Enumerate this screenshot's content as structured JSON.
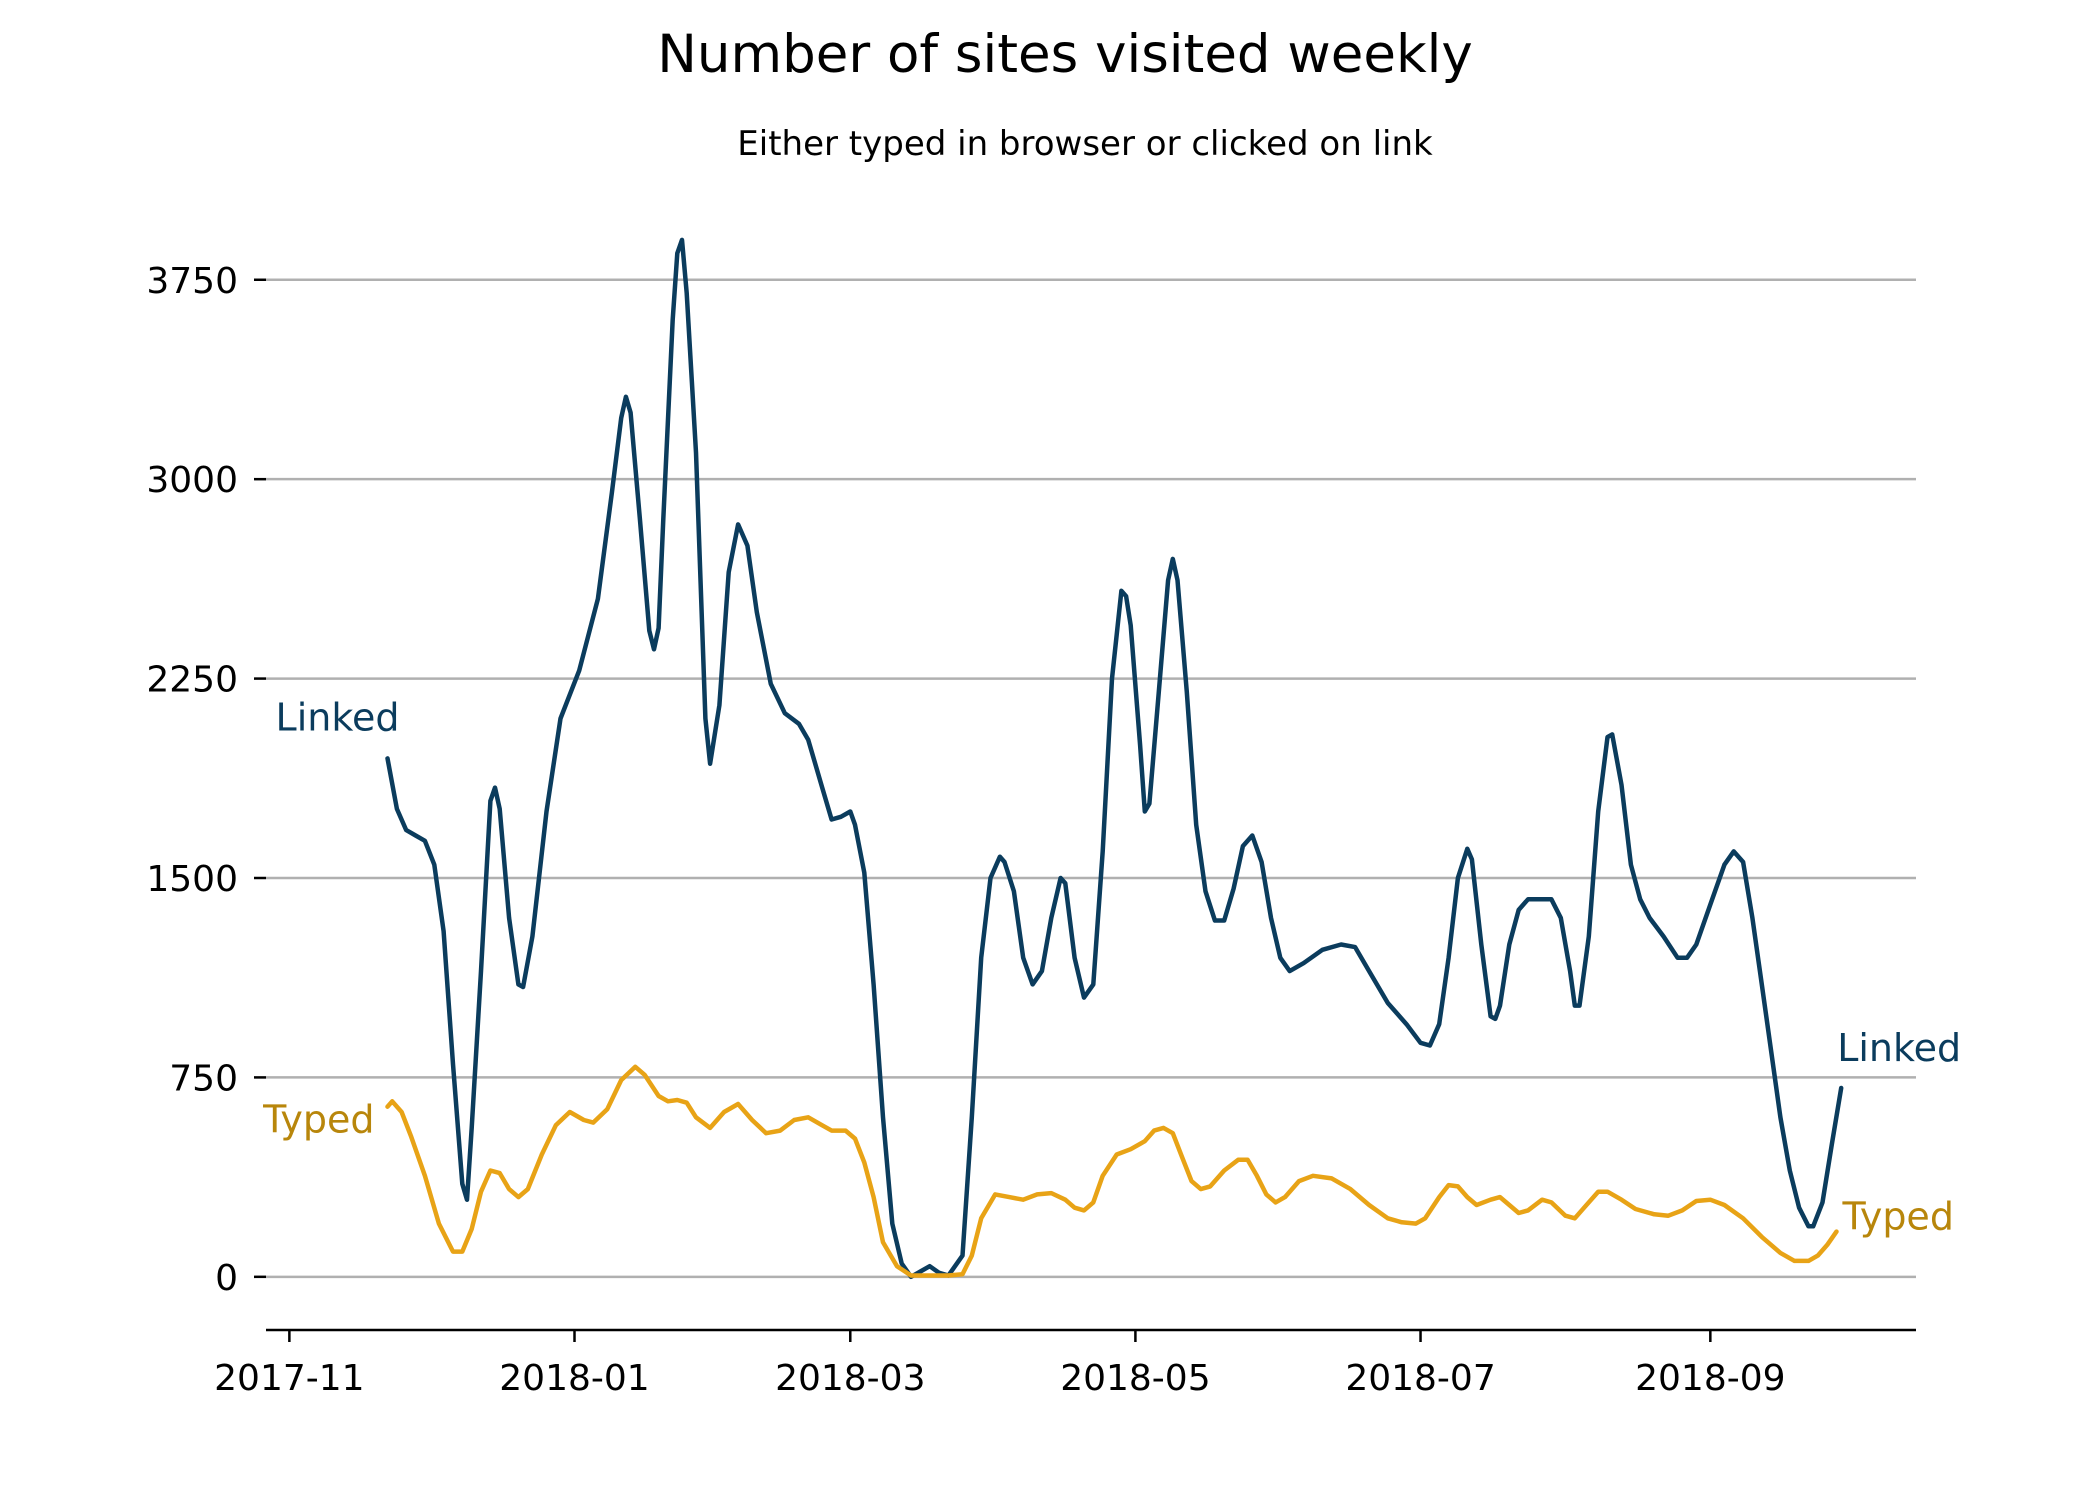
{
  "chart_data": {
    "type": "line",
    "title": "Number of sites visited weekly",
    "subtitle": "Either typed in browser or clicked on link",
    "xlabel": "",
    "ylabel": "",
    "x_ticks": [
      "2017-11",
      "2018-01",
      "2018-03",
      "2018-05",
      "2018-07",
      "2018-09"
    ],
    "y_ticks": [
      0,
      750,
      1500,
      2250,
      3000,
      3750
    ],
    "ylim": [
      -200,
      4050
    ],
    "xlim": [
      "2017-10-27",
      "2018-10-15"
    ],
    "grid": "horizontal",
    "legend": "inline labels at series ends",
    "series": [
      {
        "name": "Linked",
        "label": "Linked",
        "color": "#0b3c5d",
        "points": [
          [
            "2017-11-22",
            1950
          ],
          [
            "2017-11-24",
            1760
          ],
          [
            "2017-11-26",
            1680
          ],
          [
            "2017-11-28",
            1660
          ],
          [
            "2017-11-30",
            1640
          ],
          [
            "2017-12-02",
            1550
          ],
          [
            "2017-12-04",
            1300
          ],
          [
            "2017-12-06",
            800
          ],
          [
            "2017-12-08",
            350
          ],
          [
            "2017-12-09",
            290
          ],
          [
            "2017-12-10",
            560
          ],
          [
            "2017-12-12",
            1150
          ],
          [
            "2017-12-14",
            1790
          ],
          [
            "2017-12-15",
            1840
          ],
          [
            "2017-12-16",
            1760
          ],
          [
            "2017-12-18",
            1350
          ],
          [
            "2017-12-20",
            1100
          ],
          [
            "2017-12-21",
            1090
          ],
          [
            "2017-12-23",
            1280
          ],
          [
            "2017-12-26",
            1750
          ],
          [
            "2017-12-29",
            2100
          ],
          [
            "2018-01-02",
            2280
          ],
          [
            "2018-01-06",
            2550
          ],
          [
            "2018-01-09",
            2950
          ],
          [
            "2018-01-11",
            3230
          ],
          [
            "2018-01-12",
            3310
          ],
          [
            "2018-01-13",
            3250
          ],
          [
            "2018-01-15",
            2850
          ],
          [
            "2018-01-17",
            2430
          ],
          [
            "2018-01-18",
            2360
          ],
          [
            "2018-01-19",
            2440
          ],
          [
            "2018-01-20",
            2850
          ],
          [
            "2018-01-22",
            3600
          ],
          [
            "2018-01-23",
            3850
          ],
          [
            "2018-01-24",
            3900
          ],
          [
            "2018-01-25",
            3700
          ],
          [
            "2018-01-27",
            3100
          ],
          [
            "2018-01-29",
            2100
          ],
          [
            "2018-01-30",
            1930
          ],
          [
            "2018-02-01",
            2150
          ],
          [
            "2018-02-03",
            2650
          ],
          [
            "2018-02-05",
            2830
          ],
          [
            "2018-02-07",
            2750
          ],
          [
            "2018-02-09",
            2500
          ],
          [
            "2018-02-12",
            2230
          ],
          [
            "2018-02-15",
            2120
          ],
          [
            "2018-02-18",
            2080
          ],
          [
            "2018-02-20",
            2020
          ],
          [
            "2018-02-23",
            1840
          ],
          [
            "2018-02-25",
            1720
          ],
          [
            "2018-02-27",
            1730
          ],
          [
            "2018-03-01",
            1750
          ],
          [
            "2018-03-02",
            1700
          ],
          [
            "2018-03-04",
            1520
          ],
          [
            "2018-03-06",
            1100
          ],
          [
            "2018-03-08",
            600
          ],
          [
            "2018-03-10",
            200
          ],
          [
            "2018-03-12",
            50
          ],
          [
            "2018-03-14",
            0
          ],
          [
            "2018-03-16",
            20
          ],
          [
            "2018-03-18",
            40
          ],
          [
            "2018-03-20",
            15
          ],
          [
            "2018-03-22",
            5
          ],
          [
            "2018-03-25",
            80
          ],
          [
            "2018-03-27",
            600
          ],
          [
            "2018-03-29",
            1200
          ],
          [
            "2018-03-31",
            1500
          ],
          [
            "2018-04-02",
            1580
          ],
          [
            "2018-04-03",
            1560
          ],
          [
            "2018-04-05",
            1450
          ],
          [
            "2018-04-07",
            1200
          ],
          [
            "2018-04-09",
            1100
          ],
          [
            "2018-04-11",
            1150
          ],
          [
            "2018-04-13",
            1350
          ],
          [
            "2018-04-15",
            1500
          ],
          [
            "2018-04-16",
            1480
          ],
          [
            "2018-04-18",
            1200
          ],
          [
            "2018-04-20",
            1050
          ],
          [
            "2018-04-22",
            1100
          ],
          [
            "2018-04-24",
            1600
          ],
          [
            "2018-04-26",
            2250
          ],
          [
            "2018-04-28",
            2580
          ],
          [
            "2018-04-29",
            2560
          ],
          [
            "2018-04-30",
            2450
          ],
          [
            "2018-05-02",
            2000
          ],
          [
            "2018-05-03",
            1750
          ],
          [
            "2018-05-04",
            1780
          ],
          [
            "2018-05-06",
            2200
          ],
          [
            "2018-05-08",
            2620
          ],
          [
            "2018-05-09",
            2700
          ],
          [
            "2018-05-10",
            2620
          ],
          [
            "2018-05-12",
            2200
          ],
          [
            "2018-05-14",
            1700
          ],
          [
            "2018-05-16",
            1450
          ],
          [
            "2018-05-18",
            1340
          ],
          [
            "2018-05-20",
            1340
          ],
          [
            "2018-05-22",
            1460
          ],
          [
            "2018-05-24",
            1620
          ],
          [
            "2018-05-26",
            1660
          ],
          [
            "2018-05-28",
            1560
          ],
          [
            "2018-05-30",
            1350
          ],
          [
            "2018-06-01",
            1200
          ],
          [
            "2018-06-03",
            1150
          ],
          [
            "2018-06-06",
            1180
          ],
          [
            "2018-06-10",
            1230
          ],
          [
            "2018-06-14",
            1250
          ],
          [
            "2018-06-17",
            1240
          ],
          [
            "2018-06-20",
            1150
          ],
          [
            "2018-06-24",
            1030
          ],
          [
            "2018-06-28",
            950
          ],
          [
            "2018-07-01",
            880
          ],
          [
            "2018-07-03",
            870
          ],
          [
            "2018-07-05",
            950
          ],
          [
            "2018-07-07",
            1200
          ],
          [
            "2018-07-09",
            1500
          ],
          [
            "2018-07-11",
            1610
          ],
          [
            "2018-07-12",
            1570
          ],
          [
            "2018-07-14",
            1250
          ],
          [
            "2018-07-16",
            980
          ],
          [
            "2018-07-17",
            970
          ],
          [
            "2018-07-18",
            1020
          ],
          [
            "2018-07-20",
            1250
          ],
          [
            "2018-07-22",
            1380
          ],
          [
            "2018-07-24",
            1420
          ],
          [
            "2018-07-27",
            1420
          ],
          [
            "2018-07-29",
            1420
          ],
          [
            "2018-07-31",
            1350
          ],
          [
            "2018-08-02",
            1150
          ],
          [
            "2018-08-03",
            1020
          ],
          [
            "2018-08-04",
            1020
          ],
          [
            "2018-08-06",
            1280
          ],
          [
            "2018-08-08",
            1750
          ],
          [
            "2018-08-10",
            2030
          ],
          [
            "2018-08-11",
            2040
          ],
          [
            "2018-08-13",
            1850
          ],
          [
            "2018-08-15",
            1550
          ],
          [
            "2018-08-17",
            1420
          ],
          [
            "2018-08-19",
            1350
          ],
          [
            "2018-08-22",
            1280
          ],
          [
            "2018-08-25",
            1200
          ],
          [
            "2018-08-27",
            1200
          ],
          [
            "2018-08-29",
            1250
          ],
          [
            "2018-09-01",
            1400
          ],
          [
            "2018-09-04",
            1550
          ],
          [
            "2018-09-06",
            1600
          ],
          [
            "2018-09-08",
            1560
          ],
          [
            "2018-09-10",
            1350
          ],
          [
            "2018-09-12",
            1100
          ],
          [
            "2018-09-14",
            850
          ],
          [
            "2018-09-16",
            600
          ],
          [
            "2018-09-18",
            400
          ],
          [
            "2018-09-20",
            260
          ],
          [
            "2018-09-22",
            190
          ],
          [
            "2018-09-23",
            190
          ],
          [
            "2018-09-25",
            280
          ],
          [
            "2018-09-27",
            500
          ],
          [
            "2018-09-29",
            710
          ]
        ]
      },
      {
        "name": "Typed",
        "label": "Typed",
        "color": "#e8a316",
        "label_color": "#b8860b",
        "points": [
          [
            "2017-11-22",
            640
          ],
          [
            "2017-11-23",
            660
          ],
          [
            "2017-11-25",
            620
          ],
          [
            "2017-11-27",
            530
          ],
          [
            "2017-11-30",
            380
          ],
          [
            "2017-12-03",
            200
          ],
          [
            "2017-12-06",
            95
          ],
          [
            "2017-12-08",
            95
          ],
          [
            "2017-12-10",
            180
          ],
          [
            "2017-12-12",
            320
          ],
          [
            "2017-12-14",
            400
          ],
          [
            "2017-12-16",
            390
          ],
          [
            "2017-12-18",
            330
          ],
          [
            "2017-12-20",
            300
          ],
          [
            "2017-12-22",
            330
          ],
          [
            "2017-12-25",
            460
          ],
          [
            "2017-12-28",
            570
          ],
          [
            "2017-12-31",
            620
          ],
          [
            "2018-01-03",
            590
          ],
          [
            "2018-01-05",
            580
          ],
          [
            "2018-01-08",
            630
          ],
          [
            "2018-01-11",
            740
          ],
          [
            "2018-01-14",
            790
          ],
          [
            "2018-01-16",
            760
          ],
          [
            "2018-01-19",
            680
          ],
          [
            "2018-01-21",
            660
          ],
          [
            "2018-01-23",
            665
          ],
          [
            "2018-01-25",
            655
          ],
          [
            "2018-01-27",
            600
          ],
          [
            "2018-01-30",
            560
          ],
          [
            "2018-02-02",
            620
          ],
          [
            "2018-02-05",
            650
          ],
          [
            "2018-02-08",
            590
          ],
          [
            "2018-02-11",
            540
          ],
          [
            "2018-02-14",
            550
          ],
          [
            "2018-02-17",
            590
          ],
          [
            "2018-02-20",
            600
          ],
          [
            "2018-02-23",
            570
          ],
          [
            "2018-02-25",
            550
          ],
          [
            "2018-02-28",
            550
          ],
          [
            "2018-03-02",
            520
          ],
          [
            "2018-03-04",
            430
          ],
          [
            "2018-03-06",
            300
          ],
          [
            "2018-03-08",
            130
          ],
          [
            "2018-03-11",
            40
          ],
          [
            "2018-03-14",
            5
          ],
          [
            "2018-03-17",
            5
          ],
          [
            "2018-03-20",
            5
          ],
          [
            "2018-03-22",
            5
          ],
          [
            "2018-03-25",
            10
          ],
          [
            "2018-03-27",
            80
          ],
          [
            "2018-03-29",
            220
          ],
          [
            "2018-04-01",
            310
          ],
          [
            "2018-04-04",
            300
          ],
          [
            "2018-04-07",
            290
          ],
          [
            "2018-04-10",
            310
          ],
          [
            "2018-04-13",
            315
          ],
          [
            "2018-04-16",
            290
          ],
          [
            "2018-04-18",
            260
          ],
          [
            "2018-04-20",
            250
          ],
          [
            "2018-04-22",
            280
          ],
          [
            "2018-04-24",
            380
          ],
          [
            "2018-04-27",
            460
          ],
          [
            "2018-04-30",
            480
          ],
          [
            "2018-05-03",
            510
          ],
          [
            "2018-05-05",
            550
          ],
          [
            "2018-05-07",
            560
          ],
          [
            "2018-05-09",
            540
          ],
          [
            "2018-05-11",
            450
          ],
          [
            "2018-05-13",
            360
          ],
          [
            "2018-05-15",
            330
          ],
          [
            "2018-05-17",
            340
          ],
          [
            "2018-05-20",
            400
          ],
          [
            "2018-05-23",
            440
          ],
          [
            "2018-05-25",
            440
          ],
          [
            "2018-05-27",
            380
          ],
          [
            "2018-05-29",
            310
          ],
          [
            "2018-05-31",
            280
          ],
          [
            "2018-06-02",
            300
          ],
          [
            "2018-06-05",
            360
          ],
          [
            "2018-06-08",
            380
          ],
          [
            "2018-06-12",
            370
          ],
          [
            "2018-06-16",
            330
          ],
          [
            "2018-06-20",
            270
          ],
          [
            "2018-06-24",
            220
          ],
          [
            "2018-06-27",
            205
          ],
          [
            "2018-06-30",
            200
          ],
          [
            "2018-07-02",
            220
          ],
          [
            "2018-07-05",
            300
          ],
          [
            "2018-07-07",
            345
          ],
          [
            "2018-07-09",
            340
          ],
          [
            "2018-07-11",
            300
          ],
          [
            "2018-07-13",
            270
          ],
          [
            "2018-07-16",
            290
          ],
          [
            "2018-07-18",
            300
          ],
          [
            "2018-07-20",
            270
          ],
          [
            "2018-07-22",
            240
          ],
          [
            "2018-07-24",
            250
          ],
          [
            "2018-07-27",
            290
          ],
          [
            "2018-07-29",
            280
          ],
          [
            "2018-08-01",
            230
          ],
          [
            "2018-08-03",
            220
          ],
          [
            "2018-08-05",
            260
          ],
          [
            "2018-08-08",
            320
          ],
          [
            "2018-08-10",
            320
          ],
          [
            "2018-08-13",
            290
          ],
          [
            "2018-08-16",
            255
          ],
          [
            "2018-08-20",
            235
          ],
          [
            "2018-08-23",
            230
          ],
          [
            "2018-08-26",
            250
          ],
          [
            "2018-08-29",
            285
          ],
          [
            "2018-09-01",
            290
          ],
          [
            "2018-09-04",
            270
          ],
          [
            "2018-09-08",
            220
          ],
          [
            "2018-09-12",
            150
          ],
          [
            "2018-09-16",
            90
          ],
          [
            "2018-09-19",
            60
          ],
          [
            "2018-09-22",
            60
          ],
          [
            "2018-09-24",
            80
          ],
          [
            "2018-09-26",
            120
          ],
          [
            "2018-09-28",
            170
          ]
        ]
      }
    ]
  }
}
